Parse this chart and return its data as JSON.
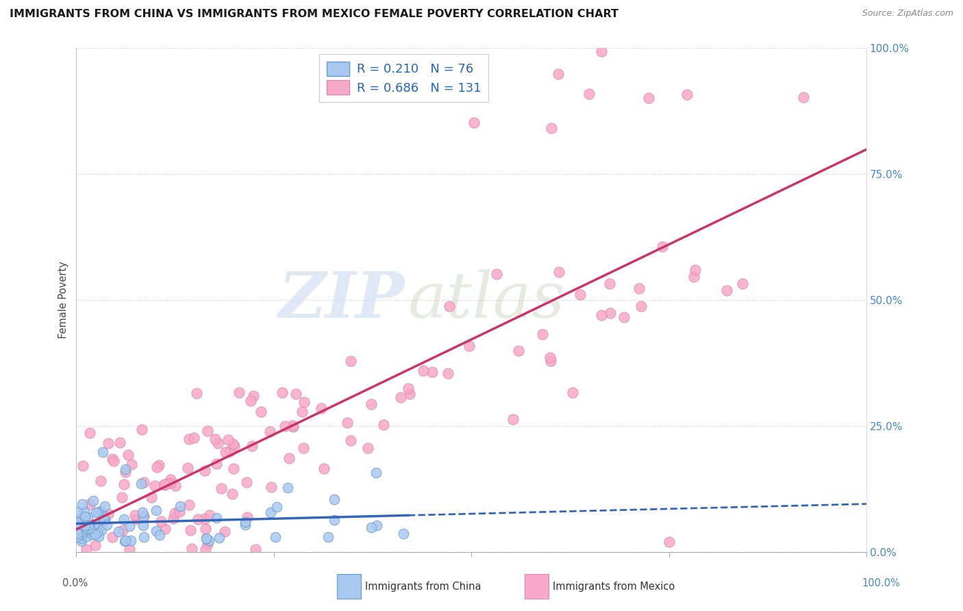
{
  "title": "IMMIGRANTS FROM CHINA VS IMMIGRANTS FROM MEXICO FEMALE POVERTY CORRELATION CHART",
  "source": "Source: ZipAtlas.com",
  "ylabel": "Female Poverty",
  "legend_china_r": "R = 0.210",
  "legend_china_n": "N = 76",
  "legend_mexico_r": "R = 0.686",
  "legend_mexico_n": "N = 131",
  "china_color": "#a8c8f0",
  "china_edge_color": "#6699cc",
  "mexico_color": "#f8a8c8",
  "mexico_edge_color": "#dd88aa",
  "china_line_color": "#3366bb",
  "mexico_line_color": "#cc3366",
  "watermark_zip": "ZIP",
  "watermark_atlas": "atlas",
  "china_N": 76,
  "mexico_N": 131,
  "background_color": "#ffffff",
  "grid_color": "#cccccc",
  "title_color": "#1a1a1a",
  "source_color": "#888888",
  "axis_label_color": "#444444",
  "tick_color_right": "#4488cc",
  "legend_text_color": "#2266bb",
  "ylim_min": 0.0,
  "ylim_max": 1.0,
  "xlim_min": 0.0,
  "xlim_max": 1.0,
  "china_line_solid_end": 0.42,
  "mexico_line_y_at_0": 0.0,
  "mexico_line_y_at_1": 0.7
}
